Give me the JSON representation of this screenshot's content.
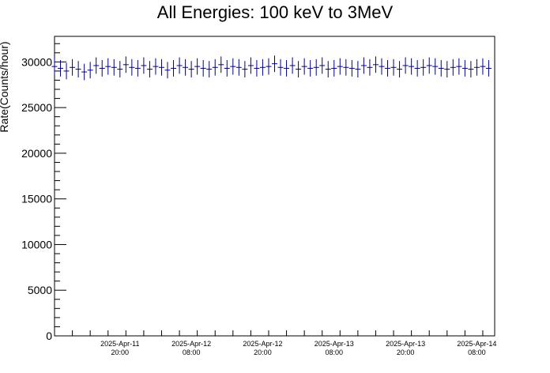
{
  "chart_data": {
    "type": "scatter",
    "title": "All Energies:  100 keV to 3MeV",
    "xlabel": "",
    "ylabel": "Rate(Counts/hour)",
    "ylim": [
      0,
      32800
    ],
    "xlim": [
      "2025-04-11 09:00",
      "2025-04-14 11:00"
    ],
    "yticks": [
      "0",
      "5000",
      "10000",
      "15000",
      "20000",
      "25000",
      "30000"
    ],
    "xticks": [
      {
        "date": "2025-Apr-11",
        "time": "20:00"
      },
      {
        "date": "2025-Apr-12",
        "time": "08:00"
      },
      {
        "date": "2025-Apr-12",
        "time": "20:00"
      },
      {
        "date": "2025-Apr-13",
        "time": "08:00"
      },
      {
        "date": "2025-Apr-13",
        "time": "20:00"
      },
      {
        "date": "2025-Apr-14",
        "time": "08:00"
      }
    ],
    "series_color": "#000080",
    "error_bars": true,
    "typical_error": 900,
    "x": [
      "2025-04-11 09:00",
      "2025-04-11 10:00",
      "2025-04-11 11:00",
      "2025-04-11 12:00",
      "2025-04-11 13:00",
      "2025-04-11 14:00",
      "2025-04-11 15:00",
      "2025-04-11 16:00",
      "2025-04-11 17:00",
      "2025-04-11 18:00",
      "2025-04-11 19:00",
      "2025-04-11 20:00",
      "2025-04-11 21:00",
      "2025-04-11 22:00",
      "2025-04-11 23:00",
      "2025-04-12 00:00",
      "2025-04-12 01:00",
      "2025-04-12 02:00",
      "2025-04-12 03:00",
      "2025-04-12 04:00",
      "2025-04-12 05:00",
      "2025-04-12 06:00",
      "2025-04-12 07:00",
      "2025-04-12 08:00",
      "2025-04-12 09:00",
      "2025-04-12 10:00",
      "2025-04-12 11:00",
      "2025-04-12 12:00",
      "2025-04-12 13:00",
      "2025-04-12 14:00",
      "2025-04-12 15:00",
      "2025-04-12 16:00",
      "2025-04-12 17:00",
      "2025-04-12 18:00",
      "2025-04-12 19:00",
      "2025-04-12 20:00",
      "2025-04-12 21:00",
      "2025-04-12 22:00",
      "2025-04-12 23:00",
      "2025-04-13 00:00",
      "2025-04-13 01:00",
      "2025-04-13 02:00",
      "2025-04-13 03:00",
      "2025-04-13 04:00",
      "2025-04-13 05:00",
      "2025-04-13 06:00",
      "2025-04-13 07:00",
      "2025-04-13 08:00",
      "2025-04-13 09:00",
      "2025-04-13 10:00",
      "2025-04-13 11:00",
      "2025-04-13 12:00",
      "2025-04-13 13:00",
      "2025-04-13 14:00",
      "2025-04-13 15:00",
      "2025-04-13 16:00",
      "2025-04-13 17:00",
      "2025-04-13 18:00",
      "2025-04-13 19:00",
      "2025-04-13 20:00",
      "2025-04-13 21:00",
      "2025-04-13 22:00",
      "2025-04-13 23:00",
      "2025-04-14 00:00",
      "2025-04-14 01:00",
      "2025-04-14 02:00",
      "2025-04-14 03:00",
      "2025-04-14 04:00",
      "2025-04-14 05:00",
      "2025-04-14 06:00",
      "2025-04-14 07:00",
      "2025-04-14 08:00",
      "2025-04-14 09:00",
      "2025-04-14 10:00"
    ],
    "y": [
      29500,
      29300,
      29000,
      29400,
      29200,
      28900,
      29100,
      29600,
      29300,
      29500,
      29400,
      29200,
      29700,
      29400,
      29300,
      29600,
      29200,
      29500,
      29400,
      29100,
      29300,
      29600,
      29400,
      29200,
      29500,
      29300,
      29200,
      29400,
      29700,
      29300,
      29500,
      29400,
      29200,
      29600,
      29300,
      29400,
      29500,
      29800,
      29400,
      29300,
      29600,
      29200,
      29500,
      29300,
      29400,
      29600,
      29200,
      29300,
      29500,
      29400,
      29300,
      29200,
      29600,
      29400,
      29700,
      29500,
      29300,
      29400,
      29200,
      29600,
      29500,
      29300,
      29400,
      29600,
      29500,
      29300,
      29200,
      29400,
      29500,
      29300,
      29200,
      29400,
      29500,
      29300
    ]
  }
}
